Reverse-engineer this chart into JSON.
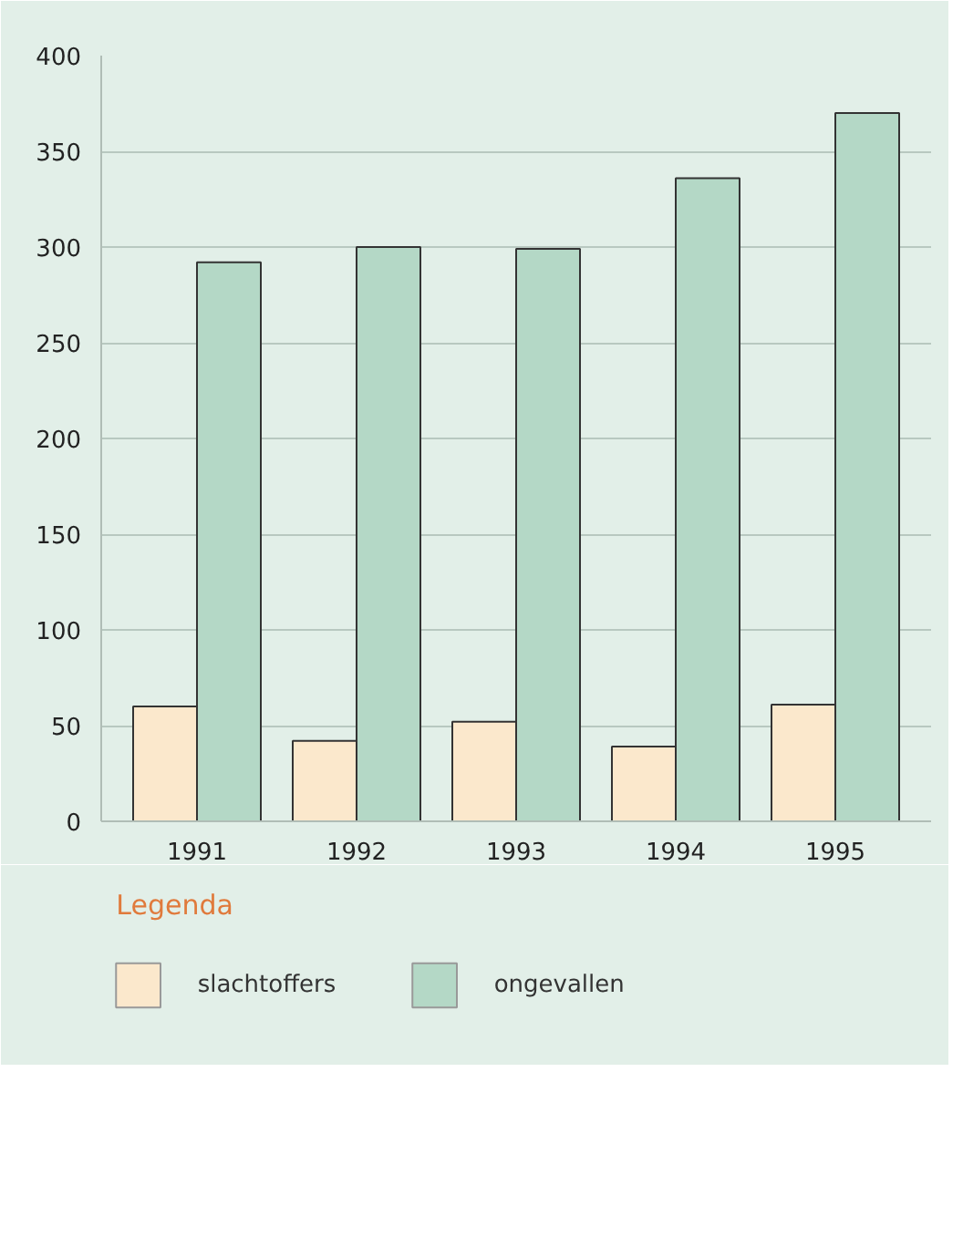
{
  "chart_data": {
    "type": "bar",
    "categories": [
      "1991",
      "1992",
      "1993",
      "1994",
      "1995"
    ],
    "series": [
      {
        "name": "slachtoffers",
        "color": "#fbe8cc",
        "values": [
          60,
          42,
          52,
          39,
          61
        ]
      },
      {
        "name": "ongevallen",
        "color": "#b4d8c6",
        "values": [
          292,
          300,
          299,
          336,
          370
        ]
      }
    ],
    "ylim": [
      0,
      400
    ],
    "yticks": [
      0,
      50,
      100,
      150,
      200,
      250,
      300,
      350,
      400
    ],
    "grid": "y",
    "legend": "bottom",
    "legend_title": "Legenda"
  }
}
